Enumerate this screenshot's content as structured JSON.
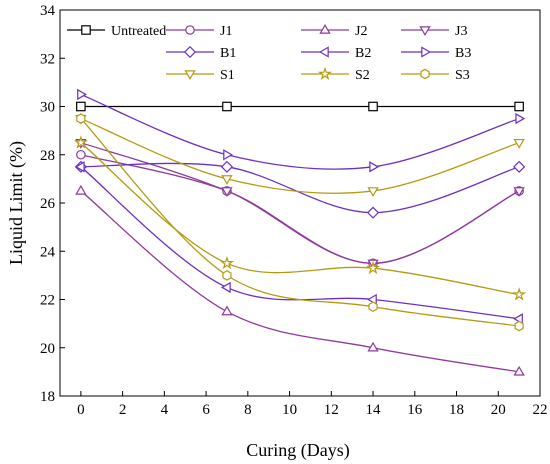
{
  "chart_data": {
    "type": "line",
    "xlabel": "Curing (Days)",
    "ylabel": "Liquid Limit (%)",
    "xlim": [
      -1,
      22
    ],
    "ylim": [
      18,
      34
    ],
    "xticks": [
      0,
      2,
      4,
      6,
      8,
      10,
      12,
      14,
      16,
      18,
      20,
      22
    ],
    "yticks": [
      18,
      20,
      22,
      24,
      26,
      28,
      30,
      32,
      34
    ],
    "x": [
      0,
      7,
      14,
      21
    ],
    "grid": false,
    "legend_position": "top",
    "series": [
      {
        "name": "Untreated",
        "color": "#000000",
        "marker": "square",
        "smooth": false,
        "values": [
          30,
          30,
          30,
          30
        ]
      },
      {
        "name": "J1",
        "color": "#8e3a9d",
        "marker": "circle",
        "smooth": true,
        "values": [
          28.0,
          26.5,
          23.5,
          26.5
        ]
      },
      {
        "name": "J2",
        "color": "#8e3a9d",
        "marker": "triangle-up",
        "smooth": true,
        "values": [
          26.5,
          21.5,
          20.0,
          19.0
        ]
      },
      {
        "name": "J3",
        "color": "#8e3a9d",
        "marker": "triangle-down",
        "smooth": true,
        "values": [
          28.5,
          26.5,
          23.5,
          26.5
        ]
      },
      {
        "name": "B1",
        "color": "#6b2fc4",
        "marker": "diamond",
        "smooth": true,
        "values": [
          27.5,
          27.5,
          25.6,
          27.5
        ]
      },
      {
        "name": "B2",
        "color": "#6b2fc4",
        "marker": "triangle-left",
        "smooth": true,
        "values": [
          27.5,
          22.5,
          22.0,
          21.2
        ]
      },
      {
        "name": "B3",
        "color": "#6b2fc4",
        "marker": "triangle-right",
        "smooth": true,
        "values": [
          30.5,
          28.0,
          27.5,
          29.5
        ]
      },
      {
        "name": "S1",
        "color": "#b39b12",
        "marker": "triangle-down",
        "smooth": true,
        "values": [
          29.5,
          27.0,
          26.5,
          28.5
        ]
      },
      {
        "name": "S2",
        "color": "#b39b12",
        "marker": "star",
        "smooth": true,
        "values": [
          28.5,
          23.5,
          23.3,
          22.2
        ]
      },
      {
        "name": "S3",
        "color": "#b39b12",
        "marker": "hexagon",
        "smooth": true,
        "values": [
          29.5,
          23.0,
          21.7,
          20.9
        ]
      }
    ]
  }
}
